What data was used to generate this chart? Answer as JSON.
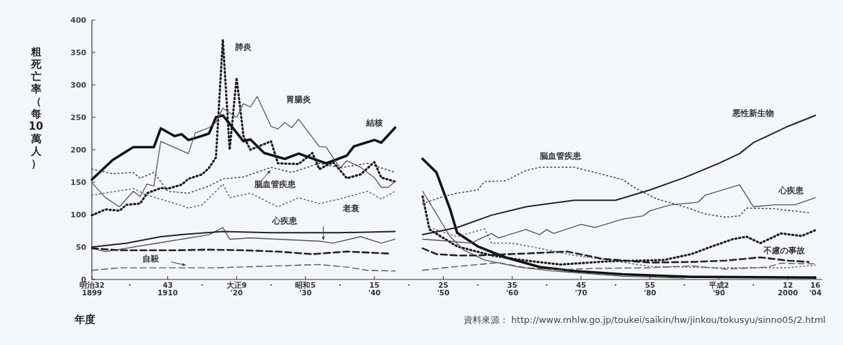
{
  "chart_data": {
    "type": "line",
    "xlabel": "年度",
    "ylabel": "粗死亡率（每10萬人）",
    "annotations": [
      "資料來源： http://www.mhlw.go.jp/toukei/saikin/hw/jinkou/tokusyu/sinno05/2.html",
      "明治32",
      "·",
      "43",
      "·",
      "大正9",
      "·",
      "昭和5",
      "·",
      "15",
      "·",
      "25",
      "·",
      "35",
      "·",
      "45",
      "·",
      "55",
      "·",
      "平成2",
      "·",
      "12",
      "16"
    ],
    "xlim": [
      1899,
      2005
    ],
    "ylim": [
      0,
      400
    ],
    "yticks": [
      0,
      50,
      100,
      150,
      200,
      250,
      300,
      350,
      400
    ],
    "xticks": [
      {
        "value": 1899,
        "label": "1899"
      },
      {
        "value": 1910,
        "label": "1910"
      },
      {
        "value": 1920,
        "label": "'20"
      },
      {
        "value": 1930,
        "label": "'30"
      },
      {
        "value": 1940,
        "label": "'40"
      },
      {
        "value": 1950,
        "label": "'50"
      },
      {
        "value": 1960,
        "label": "'60"
      },
      {
        "value": 1970,
        "label": "'70"
      },
      {
        "value": 1980,
        "label": "'80"
      },
      {
        "value": 1990,
        "label": "'90"
      },
      {
        "value": 2000,
        "label": "2000"
      },
      {
        "value": 2004,
        "label": "'04"
      }
    ],
    "marker": "none",
    "series": [
      {
        "name": "結核",
        "color": "#111111",
        "line_style": "solid",
        "x": [
          1899,
          1902,
          1905,
          1908,
          1909,
          1911,
          1912,
          1913,
          1914,
          1916,
          1917,
          1918,
          1921,
          1922,
          1924,
          1927,
          1929,
          1933,
          1936,
          1937,
          1940,
          1941,
          1943
        ],
        "values": [
          154,
          184,
          204,
          204,
          233,
          221,
          224,
          215,
          218,
          225,
          250,
          253,
          213,
          216,
          195,
          186,
          194,
          179,
          191,
          205,
          215,
          211,
          234
        ]
      },
      {
        "name": "肺炎",
        "color": "#1a1a1a",
        "line_style": "dotted",
        "x": [
          1899,
          1901,
          1903,
          1904,
          1906,
          1907,
          1909,
          1910,
          1912,
          1913,
          1915,
          1916,
          1917,
          1918,
          1919,
          1920,
          1921,
          1922,
          1925,
          1926,
          1929,
          1931,
          1932,
          1934,
          1936,
          1938,
          1940,
          1941,
          1943
        ],
        "values": [
          99,
          108,
          106,
          115,
          117,
          133,
          141,
          140,
          146,
          155,
          162,
          172,
          188,
          370,
          200,
          311,
          221,
          200,
          213,
          179,
          178,
          195,
          170,
          181,
          156,
          162,
          181,
          157,
          151
        ]
      },
      {
        "name": "胃腸炎",
        "color": "#555555",
        "line_style": "solid",
        "x": [
          1899,
          1901,
          1903,
          1905,
          1906,
          1907,
          1908,
          1909,
          1913,
          1914,
          1916,
          1917,
          1918,
          1920,
          1921,
          1922,
          1923,
          1925,
          1926,
          1927,
          1928,
          1929,
          1932,
          1933,
          1935,
          1936,
          1938,
          1940,
          1941,
          1942,
          1943
        ],
        "values": [
          149,
          126,
          112,
          136,
          128,
          147,
          144,
          213,
          194,
          226,
          234,
          242,
          264,
          250,
          271,
          266,
          282,
          236,
          232,
          242,
          234,
          247,
          205,
          204,
          172,
          183,
          173,
          157,
          142,
          142,
          151
        ]
      },
      {
        "name": "脳血管疾患",
        "color": "#444444",
        "line_style": "dotted",
        "x": [
          1899,
          1902,
          1905,
          1906,
          1908,
          1910,
          1913,
          1916,
          1918,
          1921,
          1925,
          1928,
          1932,
          1935,
          1939,
          1943
        ],
        "values": [
          170,
          163,
          165,
          156,
          165,
          136,
          133,
          144,
          155,
          158,
          173,
          165,
          179,
          172,
          179,
          165
        ]
      },
      {
        "name": "老衰",
        "color": "#666666",
        "line_style": "dotted",
        "x": [
          1899,
          1905,
          1907,
          1912,
          1913,
          1915,
          1917,
          1918,
          1919,
          1922,
          1926,
          1929,
          1932,
          1935,
          1939,
          1941,
          1943
        ],
        "values": [
          130,
          140,
          130,
          114,
          110,
          115,
          136,
          147,
          126,
          133,
          112,
          126,
          117,
          124,
          136,
          124,
          136
        ]
      },
      {
        "name": "心疾患",
        "color": "#555555",
        "line_style": "solid",
        "x": [
          1899,
          1901,
          1908,
          1912,
          1916,
          1918,
          1919,
          1922,
          1926,
          1932,
          1934,
          1938,
          1941,
          1943
        ],
        "values": [
          48,
          43,
          55,
          62,
          69,
          80,
          62,
          64,
          62,
          59,
          56,
          66,
          56,
          62
        ]
      },
      {
        "color": "#222222",
        "line_style": "solid",
        "x": [
          1899,
          1904,
          1909,
          1912,
          1918,
          1925,
          1935,
          1943
        ],
        "values": [
          50,
          56,
          66,
          69,
          74,
          72,
          72,
          74
        ]
      },
      {
        "color": "#222222",
        "line_style": "dashed",
        "x": [
          1899,
          1903,
          1905,
          1911,
          1916,
          1921,
          1926,
          1931,
          1936,
          1942
        ],
        "values": [
          48,
          45,
          45,
          45,
          46,
          45,
          43,
          39,
          43,
          40
        ]
      },
      {
        "name": "自殺",
        "color": "#555555",
        "line_style": "dashed",
        "x": [
          1899,
          1903,
          1911,
          1917,
          1932,
          1936,
          1939,
          1943
        ],
        "values": [
          14,
          18,
          18,
          18,
          23,
          19,
          14,
          13
        ]
      },
      {
        "color": "#111111",
        "line_style": "solid",
        "x": [
          1947,
          1949,
          1951,
          1952,
          1955,
          1959,
          1964,
          1969,
          1976,
          1986,
          2004
        ],
        "values": [
          186,
          165,
          108,
          72,
          51,
          34,
          19,
          13,
          8,
          4,
          3
        ]
      },
      {
        "color": "#1a1a1a",
        "line_style": "dotted",
        "x": [
          1947,
          1948,
          1952,
          1957,
          1962,
          1967,
          1974,
          1982,
          1986,
          1989,
          1992,
          1994,
          1996,
          1999,
          2002,
          2004
        ],
        "values": [
          128,
          77,
          51,
          37,
          29,
          23,
          28,
          30,
          39,
          51,
          62,
          66,
          56,
          71,
          67,
          76
        ]
      },
      {
        "color": "#555555",
        "line_style": "solid",
        "x": [
          1947,
          1949,
          1951,
          1953,
          1956,
          1961,
          1966,
          1976,
          1985
        ],
        "values": [
          136,
          101,
          66,
          45,
          30,
          19,
          13,
          5,
          2
        ]
      },
      {
        "name": "脳血管疾患",
        "color": "#444444",
        "line_style": "dotted",
        "x": [
          1947,
          1950,
          1952,
          1955,
          1956,
          1959,
          1962,
          1964,
          1969,
          1972,
          1976,
          1978,
          1981,
          1985,
          1988,
          1991,
          1993,
          1994,
          1998,
          2003
        ],
        "values": [
          117,
          128,
          133,
          138,
          151,
          152,
          168,
          173,
          173,
          165,
          154,
          140,
          124,
          112,
          101,
          96,
          98,
          110,
          109,
          103
        ]
      },
      {
        "color": "#666666",
        "line_style": "dotted",
        "x": [
          1948,
          1952,
          1956,
          1957,
          1960,
          1964,
          1969,
          1974,
          1980,
          1990,
          2000,
          2004
        ],
        "values": [
          80,
          66,
          78,
          56,
          56,
          48,
          37,
          30,
          20,
          18,
          18,
          22
        ]
      },
      {
        "name": "心疾患",
        "color": "#555555",
        "line_style": "solid",
        "x": [
          1947,
          1951,
          1954,
          1957,
          1958,
          1962,
          1964,
          1965,
          1966,
          1970,
          1972,
          1976,
          1979,
          1980,
          1983,
          1987,
          1988,
          1993,
          1995,
          1998,
          2001,
          2004
        ],
        "values": [
          62,
          59,
          56,
          71,
          64,
          77,
          69,
          77,
          71,
          85,
          80,
          93,
          98,
          106,
          115,
          119,
          130,
          146,
          112,
          115,
          115,
          126
        ]
      },
      {
        "name": "悪性新生物",
        "color": "#222222",
        "line_style": "solid",
        "x": [
          1947,
          1952,
          1957,
          1962,
          1969,
          1975,
          1980,
          1985,
          1990,
          1993,
          1995,
          1997,
          2000,
          2004
        ],
        "values": [
          69,
          80,
          99,
          112,
          122,
          122,
          138,
          157,
          179,
          194,
          211,
          221,
          236,
          253
        ]
      },
      {
        "name": "不慮の事故",
        "color": "#222222",
        "line_style": "dashed",
        "x": [
          1947,
          1949,
          1952,
          1955,
          1962,
          1968,
          1973,
          1980,
          1986,
          1991,
          1996,
          2000,
          2003
        ],
        "values": [
          48,
          39,
          37,
          37,
          40,
          43,
          32,
          26,
          27,
          29,
          34,
          29,
          27
        ]
      },
      {
        "color": "#555555",
        "line_style": "dashed",
        "x": [
          1947,
          1951,
          1955,
          1958,
          1962,
          1967,
          1972,
          1980,
          1986,
          1991,
          1997,
          1999,
          2004
        ],
        "values": [
          14,
          19,
          23,
          26,
          18,
          15,
          17,
          18,
          21,
          16,
          19,
          25,
          24
        ]
      }
    ]
  }
}
